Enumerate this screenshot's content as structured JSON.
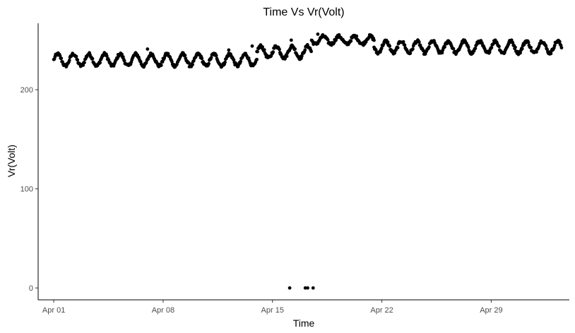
{
  "chart_data": {
    "type": "scatter",
    "title": "Time Vs Vr(Volt)",
    "xlabel": "Time",
    "ylabel": "Vr(Volt)",
    "x_ticks": [
      {
        "label": "Apr 01",
        "day": 1
      },
      {
        "label": "Apr 08",
        "day": 8
      },
      {
        "label": "Apr 15",
        "day": 15
      },
      {
        "label": "Apr 22",
        "day": 22
      },
      {
        "label": "Apr 29",
        "day": 29
      }
    ],
    "y_ticks": [
      0,
      100,
      200
    ],
    "xlim": [
      "2017-03-31",
      "2017-05-02"
    ],
    "ylim": [
      -12,
      267
    ],
    "grid": false,
    "point_color": "#000000",
    "x_unit": "day of April",
    "segments": [
      {
        "from_day": 1.0,
        "to_day": 14.0,
        "base": 230,
        "amplitude": 6
      },
      {
        "from_day": 14.0,
        "to_day": 17.5,
        "base": 238,
        "amplitude": 6
      },
      {
        "from_day": 17.5,
        "to_day": 21.5,
        "base": 250,
        "amplitude": 4
      },
      {
        "from_day": 21.5,
        "to_day": 33.5,
        "base": 243,
        "amplitude": 6
      }
    ],
    "outliers": [
      {
        "day": 16.1,
        "value": 0
      },
      {
        "day": 17.1,
        "value": 0
      },
      {
        "day": 17.25,
        "value": 0
      },
      {
        "day": 17.6,
        "value": 0
      }
    ],
    "extra_points": [
      {
        "day": 7.0,
        "value": 241
      },
      {
        "day": 12.2,
        "value": 240
      },
      {
        "day": 13.7,
        "value": 244
      },
      {
        "day": 15.5,
        "value": 236
      },
      {
        "day": 16.2,
        "value": 250
      },
      {
        "day": 17.9,
        "value": 256
      }
    ]
  }
}
